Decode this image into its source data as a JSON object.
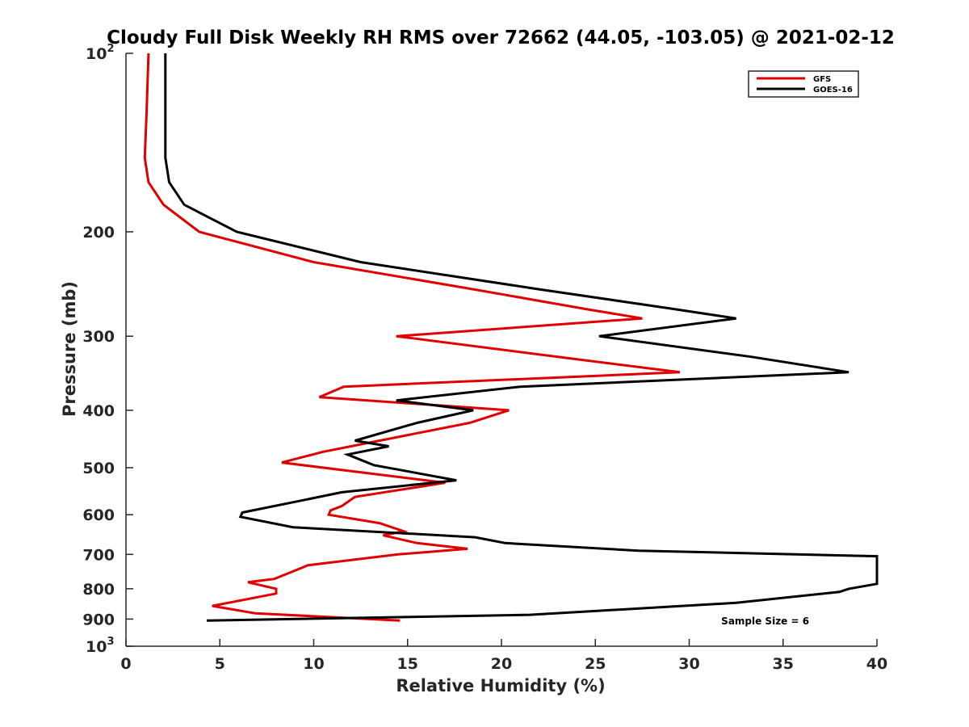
{
  "chart_data": {
    "type": "line",
    "title": "Cloudy Full Disk Weekly RH RMS over 72662 (44.05, -103.05) @ 2021-02-12",
    "xlabel": "Relative Humidity (%)",
    "ylabel": "Pressure (mb)",
    "xlim": [
      0,
      40
    ],
    "ylim": [
      100,
      1000
    ],
    "y_scale": "log",
    "y_reversed": true,
    "grid": false,
    "legend_position": "top-right",
    "x_ticks": [
      "0",
      "5",
      "10",
      "15",
      "20",
      "25",
      "30",
      "35",
      "40"
    ],
    "y_ticks": [
      {
        "value": 100,
        "base": "10",
        "exp": "2"
      },
      {
        "value": 200,
        "text": "200"
      },
      {
        "value": 300,
        "text": "300"
      },
      {
        "value": 400,
        "text": "400"
      },
      {
        "value": 500,
        "text": "500"
      },
      {
        "value": 600,
        "text": "600"
      },
      {
        "value": 700,
        "text": "700"
      },
      {
        "value": 800,
        "text": "800"
      },
      {
        "value": 900,
        "text": "900"
      },
      {
        "value": 1000,
        "base": "10",
        "exp": "3"
      }
    ],
    "series": [
      {
        "name": "GFS",
        "color": "#e00000",
        "points": [
          [
            1.2,
            100
          ],
          [
            1.1,
            125
          ],
          [
            1.0,
            150
          ],
          [
            1.2,
            165
          ],
          [
            2.0,
            180
          ],
          [
            3.9,
            200
          ],
          [
            10.0,
            225
          ],
          [
            18.5,
            250
          ],
          [
            24.5,
            270
          ],
          [
            27.5,
            280
          ],
          [
            14.4,
            300
          ],
          [
            23.0,
            325
          ],
          [
            29.5,
            345
          ],
          [
            11.6,
            365
          ],
          [
            10.3,
            380
          ],
          [
            20.4,
            400
          ],
          [
            18.3,
            420
          ],
          [
            10.5,
            470
          ],
          [
            8.3,
            490
          ],
          [
            17.0,
            530
          ],
          [
            12.2,
            560
          ],
          [
            11.5,
            580
          ],
          [
            10.9,
            590
          ],
          [
            10.8,
            600
          ],
          [
            13.5,
            620
          ],
          [
            14.8,
            640
          ],
          [
            13.7,
            650
          ],
          [
            15.5,
            670
          ],
          [
            18.2,
            685
          ],
          [
            14.5,
            700
          ],
          [
            9.7,
            730
          ],
          [
            8.8,
            750
          ],
          [
            7.9,
            770
          ],
          [
            6.5,
            780
          ],
          [
            8.0,
            800
          ],
          [
            8.0,
            815
          ],
          [
            4.6,
            855
          ],
          [
            6.9,
            880
          ],
          [
            14.6,
            905
          ]
        ]
      },
      {
        "name": "GOES-16",
        "color": "#000000",
        "points": [
          [
            2.1,
            100
          ],
          [
            2.1,
            125
          ],
          [
            2.1,
            150
          ],
          [
            2.3,
            165
          ],
          [
            3.1,
            180
          ],
          [
            5.9,
            200
          ],
          [
            12.5,
            225
          ],
          [
            22.0,
            250
          ],
          [
            29.2,
            270
          ],
          [
            32.5,
            280
          ],
          [
            25.2,
            300
          ],
          [
            33.3,
            325
          ],
          [
            38.5,
            345
          ],
          [
            21.0,
            365
          ],
          [
            14.4,
            385
          ],
          [
            18.5,
            400
          ],
          [
            15.5,
            420
          ],
          [
            12.2,
            450
          ],
          [
            14.0,
            460
          ],
          [
            11.8,
            475
          ],
          [
            13.2,
            495
          ],
          [
            17.6,
            525
          ],
          [
            11.5,
            550
          ],
          [
            9.1,
            570
          ],
          [
            6.2,
            595
          ],
          [
            6.1,
            605
          ],
          [
            8.9,
            630
          ],
          [
            18.6,
            655
          ],
          [
            20.2,
            670
          ],
          [
            27.3,
            690
          ],
          [
            40.0,
            705
          ],
          [
            40.0,
            785
          ],
          [
            38.5,
            800
          ],
          [
            38.0,
            810
          ],
          [
            32.5,
            845
          ],
          [
            21.5,
            885
          ],
          [
            4.3,
            905
          ]
        ]
      }
    ],
    "annotations": [
      {
        "text": "Sample Size = 6",
        "x": 32.5,
        "y": 905
      }
    ]
  }
}
